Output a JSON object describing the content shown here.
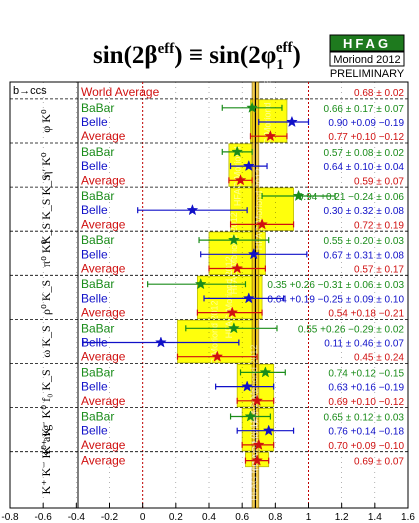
{
  "header": {
    "title": "sin(2β",
    "title_sup": "eff",
    "title_mid": ") ≡ sin(2φ",
    "title_sub": "1",
    "title_sup2": "eff",
    "title_end": ")",
    "logo_text": "HFAG",
    "logo_sub": "Moriond 2012",
    "logo_status": "PRELIMINARY",
    "watermark": "HFAG Moriond 2012"
  },
  "chart_data": {
    "type": "scatter-errorbar",
    "xlim": [
      -0.8,
      1.6
    ],
    "x_ticks": [
      "-0.8",
      "-0.6",
      "-0.4",
      "-0.2",
      "0",
      "0.2",
      "0.4",
      "0.6",
      "0.8",
      "1",
      "1.2",
      "1.4",
      "1.6"
    ],
    "x_tick_values": [
      -0.8,
      -0.6,
      -0.4,
      -0.2,
      0,
      0.2,
      0.4,
      0.6,
      0.8,
      1,
      1.2,
      1.4,
      1.6
    ],
    "reference_lines": [
      0,
      1
    ],
    "world_average_band": {
      "value": 0.68,
      "error": 0.02
    },
    "colors": {
      "BaBar": "#1a8c1a",
      "Belle": "#1010c8",
      "Average": "#d01010",
      "band": "#ffff00",
      "band_edge": "#b7b700"
    },
    "groups": [
      {
        "label": "b→ccs",
        "rows": [
          {
            "name": "World Average",
            "type": "world",
            "value": 0.68,
            "err_lo": 0.02,
            "err_hi": 0.02,
            "text": "0.68 ± 0.02"
          }
        ]
      },
      {
        "label": "φ K⁰",
        "rows": [
          {
            "name": "BaBar",
            "value": 0.66,
            "err_lo": 0.18,
            "err_hi": 0.18,
            "text": "0.66 ± 0.17 ± 0.07"
          },
          {
            "name": "Belle",
            "value": 0.9,
            "err_lo": 0.2,
            "err_hi": 0.1,
            "text": "0.90 +0.09 −0.19"
          },
          {
            "name": "Average",
            "value": 0.77,
            "err_lo": 0.12,
            "err_hi": 0.1,
            "text": "0.77 +0.10 −0.12"
          }
        ]
      },
      {
        "label": "η′ K⁰",
        "rows": [
          {
            "name": "BaBar",
            "value": 0.57,
            "err_lo": 0.09,
            "err_hi": 0.09,
            "text": "0.57 ± 0.08 ± 0.02"
          },
          {
            "name": "Belle",
            "value": 0.64,
            "err_lo": 0.11,
            "err_hi": 0.11,
            "text": "0.64 ± 0.10 ± 0.04"
          },
          {
            "name": "Average",
            "value": 0.59,
            "err_lo": 0.07,
            "err_hi": 0.07,
            "text": "0.59 ± 0.07"
          }
        ]
      },
      {
        "label": "K_S K_S K_S",
        "rows": [
          {
            "name": "BaBar",
            "value": 0.94,
            "err_lo": 0.22,
            "err_hi": 0.22,
            "text": "0.94 +0.21 −0.24 ± 0.06"
          },
          {
            "name": "Belle",
            "value": 0.3,
            "err_lo": 0.33,
            "err_hi": 0.33,
            "text": "0.30 ± 0.32 ± 0.08"
          },
          {
            "name": "Average",
            "value": 0.72,
            "err_lo": 0.19,
            "err_hi": 0.19,
            "text": "0.72 ± 0.19"
          }
        ]
      },
      {
        "label": "π⁰ K⁰",
        "rows": [
          {
            "name": "BaBar",
            "value": 0.55,
            "err_lo": 0.21,
            "err_hi": 0.21,
            "text": "0.55 ± 0.20 ± 0.03"
          },
          {
            "name": "Belle",
            "value": 0.67,
            "err_lo": 0.32,
            "err_hi": 0.32,
            "text": "0.67 ± 0.31 ± 0.08"
          },
          {
            "name": "Average",
            "value": 0.57,
            "err_lo": 0.17,
            "err_hi": 0.17,
            "text": "0.57 ± 0.17"
          }
        ]
      },
      {
        "label": "ρ⁰ K_S",
        "rows": [
          {
            "name": "BaBar",
            "value": 0.35,
            "err_lo": 0.32,
            "err_hi": 0.27,
            "text": "0.35 +0.26 −0.31 ± 0.06 ± 0.03"
          },
          {
            "name": "Belle",
            "value": 0.64,
            "err_lo": 0.27,
            "err_hi": 0.21,
            "text": "0.64 +0.19 −0.25 ± 0.09 ± 0.10"
          },
          {
            "name": "Average",
            "value": 0.54,
            "err_lo": 0.21,
            "err_hi": 0.18,
            "text": "0.54 +0.18 −0.21"
          }
        ]
      },
      {
        "label": "ω K_S",
        "rows": [
          {
            "name": "BaBar",
            "value": 0.55,
            "err_lo": 0.29,
            "err_hi": 0.26,
            "text": "0.55 +0.26 −0.29 ± 0.02"
          },
          {
            "name": "Belle",
            "value": 0.11,
            "err_lo": 0.47,
            "err_hi": 0.47,
            "text": "0.11 ± 0.46 ± 0.07"
          },
          {
            "name": "Average",
            "value": 0.45,
            "err_lo": 0.24,
            "err_hi": 0.24,
            "text": "0.45 ± 0.24"
          }
        ]
      },
      {
        "label": "f₀ K_S",
        "rows": [
          {
            "name": "BaBar",
            "value": 0.74,
            "err_lo": 0.15,
            "err_hi": 0.12,
            "text": "0.74 +0.12 −0.15"
          },
          {
            "name": "Belle",
            "value": 0.63,
            "err_lo": 0.19,
            "err_hi": 0.16,
            "text": "0.63 +0.16 −0.19"
          },
          {
            "name": "Average",
            "value": 0.69,
            "err_lo": 0.12,
            "err_hi": 0.1,
            "text": "0.69 +0.10 −0.12"
          }
        ]
      },
      {
        "label": "K⁺ K⁻ K⁰",
        "rows": [
          {
            "name": "BaBar",
            "value": 0.65,
            "err_lo": 0.12,
            "err_hi": 0.12,
            "text": "0.65 ± 0.12 ± 0.03"
          },
          {
            "name": "Belle",
            "value": 0.76,
            "err_lo": 0.19,
            "err_hi": 0.15,
            "text": "0.76 +0.14 −0.18"
          },
          {
            "name": "Average",
            "value": 0.7,
            "err_lo": 0.1,
            "err_hi": 0.09,
            "text": "0.70 +0.09 −0.10"
          }
        ]
      },
      {
        "label": "K⁺ K⁻ K⁰ avg",
        "rows": [
          {
            "name": "Average",
            "value": 0.69,
            "err_lo": 0.07,
            "err_hi": 0.07,
            "text": "0.69 ± 0.07"
          }
        ]
      }
    ]
  }
}
